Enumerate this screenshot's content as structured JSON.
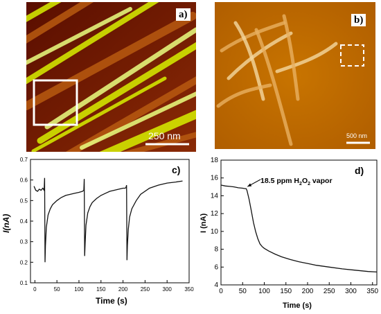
{
  "panels": {
    "a": {
      "letter": "a)",
      "scale_label": "250 nm",
      "colors": {
        "dark": "#7a1a00",
        "mid": "#b85a10",
        "bright": "#d8f000",
        "pale": "#eaff80"
      }
    },
    "b": {
      "letter": "b)",
      "scale_label": "500 nm",
      "colors": {
        "background": "#c06a00",
        "fiber": "#e8b060",
        "fiber_light": "#f4d8a0"
      }
    },
    "c": {
      "letter": "c)"
    },
    "d": {
      "letter": "d)"
    }
  },
  "chart_data": [
    {
      "panel": "c",
      "type": "line",
      "xlabel": "Time (s)",
      "ylabel": "I(nA)",
      "xlim": [
        -10,
        350
      ],
      "ylim": [
        0.1,
        0.7
      ],
      "xticks": [
        0,
        50,
        100,
        150,
        200,
        250,
        300,
        350
      ],
      "yticks": [
        0.1,
        0.2,
        0.3,
        0.4,
        0.5,
        0.6,
        0.7
      ],
      "series": [
        {
          "x": [
            -2,
            2,
            6,
            10,
            14,
            18,
            21,
            22,
            23,
            24,
            26,
            30,
            35,
            40,
            50,
            60,
            70,
            80,
            90,
            100,
            108,
            111,
            112,
            113,
            114,
            116,
            120,
            125,
            130,
            140,
            150,
            160,
            170,
            180,
            190,
            200,
            205,
            207,
            208,
            209,
            210,
            212,
            215,
            220,
            230,
            240,
            260,
            280,
            300,
            320,
            335
          ],
          "y": [
            0.57,
            0.55,
            0.545,
            0.555,
            0.55,
            0.56,
            0.55,
            0.61,
            0.2,
            0.28,
            0.37,
            0.43,
            0.46,
            0.48,
            0.5,
            0.515,
            0.525,
            0.53,
            0.535,
            0.54,
            0.545,
            0.55,
            0.605,
            0.23,
            0.29,
            0.38,
            0.44,
            0.47,
            0.49,
            0.51,
            0.525,
            0.535,
            0.545,
            0.55,
            0.555,
            0.56,
            0.56,
            0.565,
            0.575,
            0.21,
            0.28,
            0.36,
            0.42,
            0.46,
            0.5,
            0.53,
            0.56,
            0.575,
            0.585,
            0.59,
            0.595
          ]
        }
      ]
    },
    {
      "panel": "d",
      "type": "line",
      "xlabel": "Time (s)",
      "ylabel": "I (nA)",
      "xlim": [
        0,
        360
      ],
      "ylim": [
        4,
        18
      ],
      "xticks": [
        0,
        50,
        100,
        150,
        200,
        250,
        300,
        350
      ],
      "yticks": [
        4,
        6,
        8,
        10,
        12,
        14,
        16,
        18
      ],
      "annotation": {
        "prefix": "18.5 ppm H",
        "sub": "2",
        "mid": "O",
        "sub2": "2",
        "suffix": " vapor",
        "x": 58,
        "y": 14.8
      },
      "series": [
        {
          "x": [
            0,
            10,
            20,
            30,
            40,
            50,
            55,
            58,
            60,
            65,
            70,
            75,
            80,
            85,
            90,
            95,
            100,
            110,
            125,
            140,
            160,
            180,
            200,
            220,
            250,
            280,
            310,
            340,
            360
          ],
          "y": [
            15.2,
            15.1,
            15.05,
            15.0,
            14.9,
            14.85,
            14.8,
            14.8,
            14.6,
            13.6,
            12.3,
            11.0,
            10.0,
            9.2,
            8.6,
            8.3,
            8.1,
            7.8,
            7.45,
            7.15,
            6.85,
            6.6,
            6.4,
            6.2,
            6.0,
            5.8,
            5.65,
            5.5,
            5.45
          ]
        }
      ]
    }
  ]
}
